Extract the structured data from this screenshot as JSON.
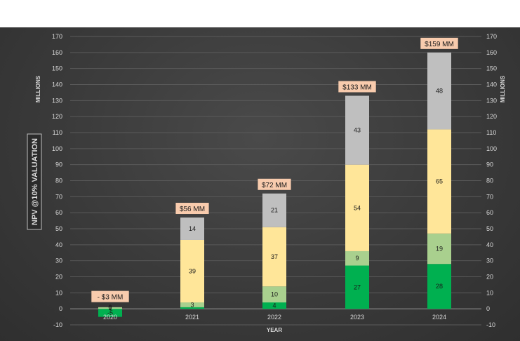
{
  "chart_data": {
    "type": "bar",
    "stacked": true,
    "title": "",
    "xlabel": "YEAR",
    "ylabel": "NPV @10% VALUATION",
    "y_unit_left": "MILLIONS",
    "y_unit_right": "MILLIONS",
    "ylim": [
      -10,
      170
    ],
    "yticks": [
      -10,
      0,
      10,
      20,
      30,
      40,
      50,
      60,
      70,
      80,
      90,
      100,
      110,
      120,
      130,
      140,
      150,
      160,
      170
    ],
    "grid": true,
    "categories": [
      "2020",
      "2021",
      "2022",
      "2023",
      "2024"
    ],
    "series": [
      {
        "color": "#00b050",
        "values": [
          -5,
          1,
          4,
          27,
          28
        ],
        "labels": [
          "-5",
          "",
          "4",
          "27",
          "28"
        ]
      },
      {
        "color": "#a9d08e",
        "values": [
          1,
          3,
          10,
          9,
          19
        ],
        "labels": [
          "1",
          "3",
          "10",
          "9",
          "19"
        ]
      },
      {
        "color": "#ffe699",
        "values": [
          0,
          39,
          37,
          54,
          65
        ],
        "labels": [
          "0",
          "39",
          "37",
          "54",
          "65"
        ]
      },
      {
        "color": "#bfbfbf",
        "values": [
          0,
          14,
          21,
          43,
          48
        ],
        "labels": [
          "0",
          "14",
          "21",
          "43",
          "48"
        ]
      }
    ],
    "totals": [
      "- $3 MM",
      "$56 MM",
      "$72 MM",
      "$133 MM",
      "$159 MM"
    ],
    "total_label_color": "#f8cbad"
  }
}
